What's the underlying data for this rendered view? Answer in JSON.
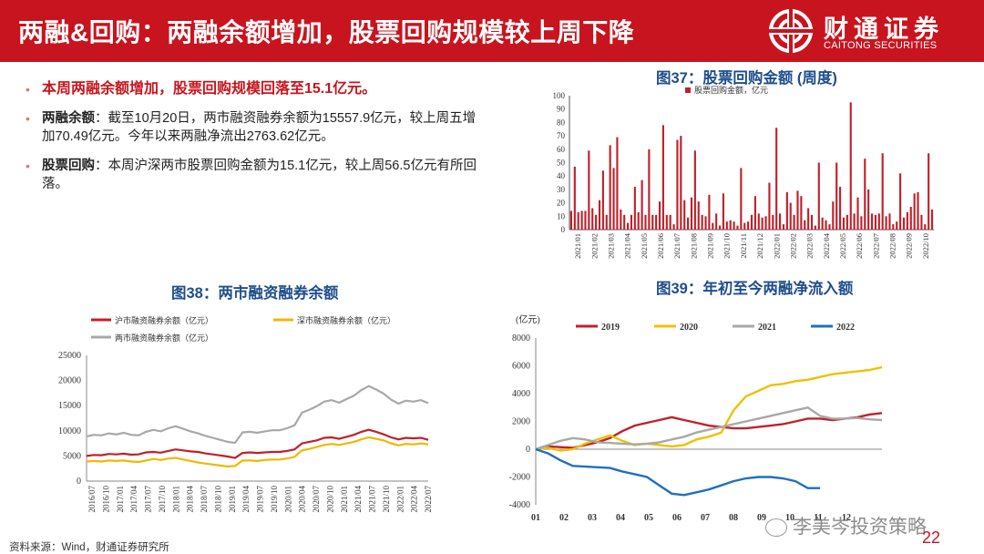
{
  "header": {
    "title": "两融&回购：两融余额增加，股票回购规模较上周下降",
    "logo_cn": "财通证券",
    "logo_en": "CAITONG SECURITIES",
    "background": "#c8141e"
  },
  "bullets": [
    {
      "text": "本周两融余额增加，股票回购规模回落至15.1亿元。"
    },
    {
      "head": "两融余额",
      "text": "：截至10月20日，两市融资融券余额为15557.9亿元，较上周五增加70.49亿元。今年以来两融净流出2763.62亿元。"
    },
    {
      "head": "股票回购",
      "text": "：本周沪深两市股票回购金额为15.1亿元，较上周56.5亿元有所回落。"
    }
  ],
  "fig37_title": "图37：股票回购金额 (周度)",
  "fig38_title": "图38：两市融资融券余额",
  "fig39_title": "图39：年初至今两融净流入额",
  "source": "资料来源：Wind，财通证券研究所",
  "page_number": "22",
  "watermark": "李美岑投资策略",
  "chart_data": [
    {
      "id": "fig37",
      "type": "bar",
      "legend": [
        "股票回购金额，亿元"
      ],
      "color": "#c0202a",
      "ylim": [
        0,
        100
      ],
      "yticks": [
        0,
        10,
        20,
        30,
        40,
        50,
        60,
        70,
        80,
        90,
        100
      ],
      "xticks": [
        "2021/01",
        "2021/02",
        "2021/03",
        "2021/04",
        "2021/05",
        "2021/06",
        "2021/07",
        "2021/08",
        "2021/09",
        "2021/10",
        "2021/11",
        "2021/12",
        "2022/01",
        "2022/02",
        "2022/03",
        "2022/04",
        "2022/05",
        "2022/06",
        "2022/07",
        "2022/08",
        "2022/09",
        "2022/10"
      ],
      "values": [
        14,
        47,
        13,
        14,
        14,
        59,
        16,
        11,
        22,
        44,
        11,
        63,
        46,
        69,
        15,
        11,
        5,
        11,
        32,
        13,
        37,
        11,
        60,
        11,
        11,
        21,
        78,
        11,
        11,
        4,
        67,
        70,
        22,
        9,
        24,
        59,
        21,
        11,
        10,
        26,
        5,
        12,
        3,
        27,
        6,
        7,
        6,
        3,
        46,
        5,
        6,
        11,
        25,
        12,
        9,
        10,
        35,
        11,
        76,
        12,
        4,
        28,
        20,
        11,
        29,
        25,
        7,
        16,
        11,
        3,
        50,
        9,
        7,
        4,
        21,
        50,
        32,
        9,
        11,
        95,
        12,
        24,
        10,
        53,
        30,
        12,
        11,
        12,
        57,
        10,
        12,
        4,
        6,
        42,
        9,
        13,
        17,
        27,
        28,
        11,
        4,
        57,
        15
      ]
    },
    {
      "id": "fig38",
      "type": "line",
      "series": [
        {
          "name": "沪市融资融券余额（亿元）",
          "color": "#c0202a",
          "values": [
            5000,
            5200,
            5150,
            5400,
            5300,
            5450,
            5250,
            5300,
            5700,
            5800,
            5650,
            6000,
            6300,
            6100,
            5900,
            5800,
            5500,
            5300,
            5100,
            4900,
            4600,
            5600,
            5700,
            5600,
            5700,
            5800,
            5800,
            6000,
            6300,
            7500,
            7800,
            8100,
            8600,
            8700,
            8400,
            8800,
            9200,
            9800,
            10200,
            9800,
            9300,
            8700,
            8300,
            8600,
            8500,
            8600,
            8200
          ]
        },
        {
          "name": "深市融资融券余额（亿元）",
          "color": "#f0b800",
          "values": [
            3900,
            4000,
            3900,
            4100,
            4000,
            4100,
            3900,
            3800,
            4100,
            4400,
            4200,
            4500,
            4600,
            4300,
            4000,
            3700,
            3500,
            3300,
            3100,
            2900,
            3000,
            4100,
            4100,
            4000,
            4200,
            4300,
            4300,
            4500,
            4800,
            6100,
            6400,
            6800,
            7200,
            7400,
            7200,
            7500,
            7800,
            8300,
            8700,
            8400,
            8100,
            7500,
            7100,
            7400,
            7300,
            7500,
            7300
          ]
        },
        {
          "name": "两市融资融券余额（亿元）",
          "color": "#a8a8a8",
          "values": [
            8900,
            9200,
            9100,
            9500,
            9300,
            9600,
            9200,
            9100,
            9800,
            10200,
            9900,
            10500,
            10900,
            10400,
            9900,
            9500,
            9000,
            8600,
            8200,
            7800,
            7600,
            9700,
            9800,
            9600,
            9900,
            10100,
            10100,
            10500,
            11100,
            13600,
            14200,
            14900,
            15800,
            16100,
            15600,
            16300,
            17000,
            18100,
            18900,
            18200,
            17400,
            16200,
            15400,
            16000,
            15800,
            16100,
            15500
          ]
        }
      ],
      "ylim": [
        0,
        25000
      ],
      "yticks": [
        0,
        5000,
        10000,
        15000,
        20000,
        25000
      ],
      "xticks": [
        "2016/07",
        "2016/10",
        "2017/01",
        "2017/04",
        "2017/07",
        "2017/10",
        "2018/01",
        "2018/04",
        "2018/07",
        "2018/10",
        "2019/01",
        "2019/04",
        "2019/07",
        "2019/10",
        "2020/01",
        "2020/04",
        "2020/07",
        "2020/10",
        "2021/01",
        "2021/04",
        "2021/07",
        "2021/10",
        "2022/01",
        "2022/04",
        "2022/07"
      ]
    },
    {
      "id": "fig39",
      "type": "line",
      "unit": "(亿元)",
      "series": [
        {
          "name": "2019",
          "color": "#c0202a",
          "values": [
            0,
            200,
            150,
            100,
            300,
            500,
            800,
            1300,
            1700,
            1900,
            2100,
            2300,
            2100,
            1900,
            1700,
            1600,
            1500,
            1500,
            1600,
            1700,
            1800,
            2000,
            2200,
            2200,
            2100,
            2200,
            2300,
            2500,
            2600
          ]
        },
        {
          "name": "2020",
          "color": "#f0c000",
          "values": [
            0,
            100,
            -100,
            0,
            400,
            700,
            1000,
            600,
            300,
            400,
            300,
            200,
            300,
            700,
            900,
            1200,
            2800,
            3800,
            4200,
            4600,
            4700,
            4900,
            5000,
            5200,
            5400,
            5500,
            5600,
            5700,
            5900
          ]
        },
        {
          "name": "2021",
          "color": "#a8a8a8",
          "values": [
            0,
            300,
            600,
            800,
            700,
            500,
            450,
            400,
            350,
            400,
            500,
            700,
            900,
            1200,
            1400,
            1600,
            1800,
            2000,
            2200,
            2400,
            2600,
            2800,
            3000,
            2400,
            2200,
            2200,
            2250,
            2150,
            2100
          ]
        },
        {
          "name": "2022",
          "color": "#1f6fc0",
          "values": [
            0,
            -300,
            -800,
            -1200,
            -1250,
            -1300,
            -1350,
            -1600,
            -1800,
            -2000,
            -2600,
            -3200,
            -3300,
            -3100,
            -2900,
            -2600,
            -2300,
            -2100,
            -2000,
            -2000,
            -2100,
            -2300,
            -2800,
            -2800
          ]
        }
      ],
      "ylim": [
        -4000,
        8000
      ],
      "yticks": [
        -4000,
        -2000,
        0,
        2000,
        4000,
        6000,
        8000
      ],
      "xticks": [
        "01",
        "02",
        "03",
        "04",
        "05",
        "06",
        "07",
        "08",
        "09",
        "10",
        "11",
        "12"
      ]
    }
  ]
}
